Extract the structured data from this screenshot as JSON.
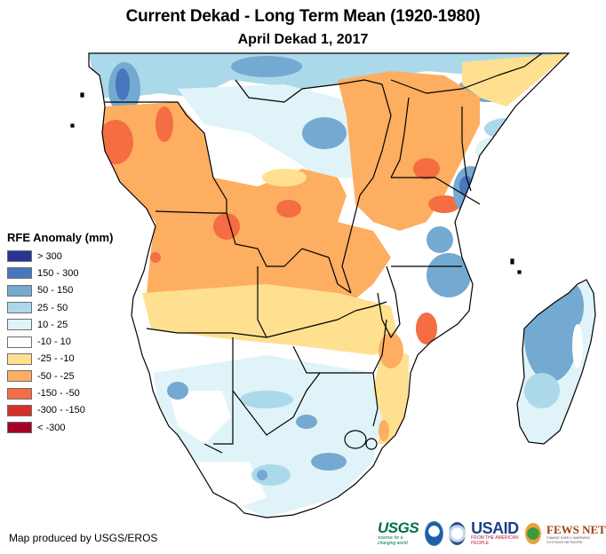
{
  "title": "Current Dekad - Long Term Mean (1920-1980)",
  "subtitle": "April Dekad 1, 2017",
  "legend": {
    "title": "RFE Anomaly (mm)",
    "items": [
      {
        "label": "> 300",
        "color": "#2b3496"
      },
      {
        "label": "150 - 300",
        "color": "#4777bd"
      },
      {
        "label": "50 - 150",
        "color": "#74a9d1"
      },
      {
        "label": "25 - 50",
        "color": "#abd9e9"
      },
      {
        "label": "10 - 25",
        "color": "#e0f3f8"
      },
      {
        "label": "-10 - 10",
        "color": "#ffffff"
      },
      {
        "label": "-25 - -10",
        "color": "#fee090"
      },
      {
        "label": "-50 - -25",
        "color": "#fdae61"
      },
      {
        "label": "-150 - -50",
        "color": "#f46d43"
      },
      {
        "label": "-300 - -150",
        "color": "#d73027"
      },
      {
        "label": "< -300",
        "color": "#a50026"
      }
    ]
  },
  "credit": "Map produced by USGS/EROS",
  "logos": {
    "usgs": "USGS",
    "usgs_tag": "science for a changing world",
    "noaa": "NOAA",
    "usaid": "USAID",
    "usaid_tag": "FROM THE AMERICAN PEOPLE",
    "fews": "FEWS NET",
    "fews_tag": "FAMINE EARLY WARNING SYSTEMS NETWORK"
  },
  "map": {
    "region": "Central and Southern Africa",
    "dominant_pattern": [
      {
        "area": "Angola / DRC / Zambia / Tanzania",
        "class": "-50 - -25"
      },
      {
        "area": "Gabon / Congo coast, western Tanzania",
        "class": "-150 - -50"
      },
      {
        "area": "Namibia / Botswana / South Africa",
        "class": "10 - 25"
      },
      {
        "area": "Madagascar",
        "class": "50 - 150"
      },
      {
        "area": "Cameroon / CAR / northern DRC",
        "class": "25 - 50"
      },
      {
        "area": "Zambia south / Zimbabwe / Mozambique south",
        "class": "-25 - -10"
      }
    ]
  }
}
